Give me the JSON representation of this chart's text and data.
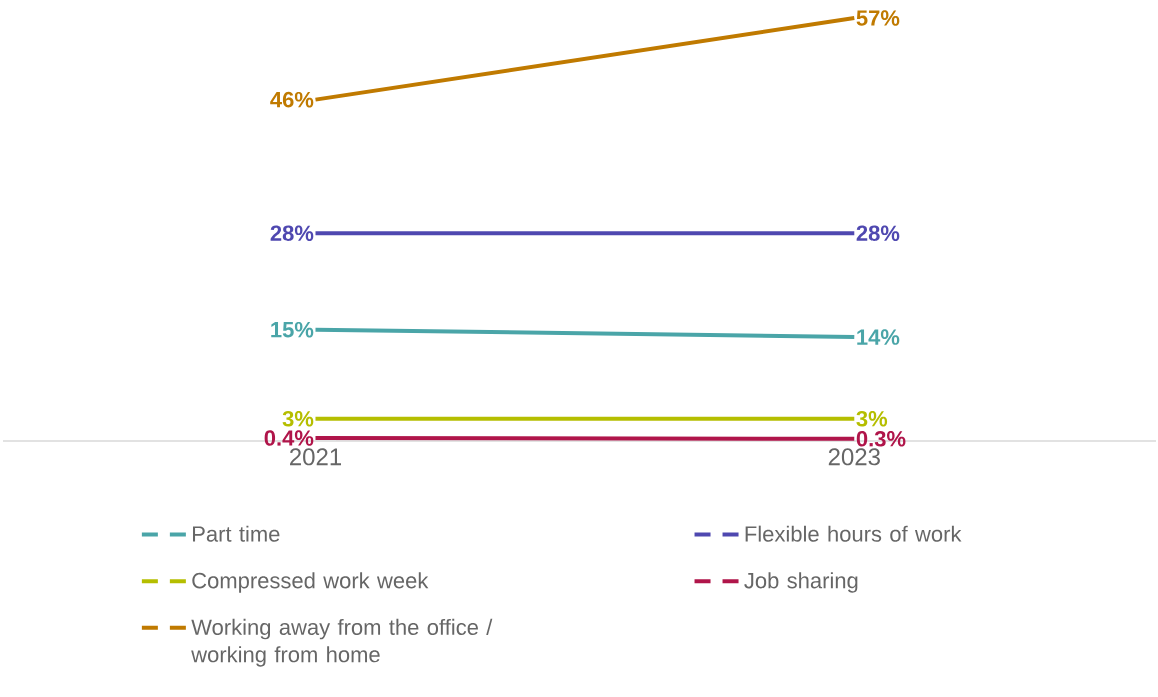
{
  "chart_data": {
    "type": "line",
    "categories": [
      "2021",
      "2023"
    ],
    "legend": "bottom",
    "line_style": "solid",
    "series": [
      {
        "name": "Part time",
        "color": "#4aa5a8",
        "values": [
          15,
          14
        ],
        "value_labels": [
          "15%",
          "14%"
        ]
      },
      {
        "name": "Flexible hours of work",
        "color": "#4f48b0",
        "values": [
          28,
          28
        ],
        "value_labels": [
          "28%",
          "28%"
        ]
      },
      {
        "name": "Compressed work week",
        "color": "#b5be00",
        "values": [
          3,
          3
        ],
        "value_labels": [
          "3%",
          "3%"
        ]
      },
      {
        "name": "Job sharing",
        "color": "#b0154a",
        "values": [
          0.4,
          0.3
        ],
        "value_labels": [
          "0.4%",
          "0.3%"
        ]
      },
      {
        "name": "Working away from the office / working from home",
        "color": "#c07a00",
        "values": [
          46,
          57
        ],
        "value_labels": [
          "46%",
          "57%"
        ]
      }
    ]
  }
}
